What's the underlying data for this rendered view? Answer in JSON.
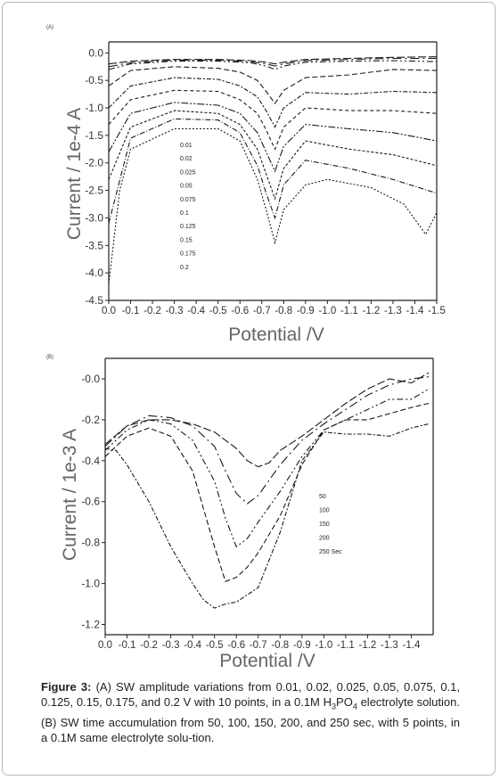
{
  "chart_data": [
    {
      "panel_tag": "(A)",
      "type": "line",
      "xlabel": "Potential /V",
      "ylabel": "Current / 1e-4 A",
      "xlim": [
        0.0,
        1.5
      ],
      "ylim": [
        -4.5,
        0.2
      ],
      "x_ticks": [
        "0.0",
        "-0.1",
        "-0.2",
        "-0.3",
        "-0.4",
        "-0.5",
        "-0.6",
        "-0.7",
        "-0.8",
        "-0.9",
        "-1.0",
        "-1.1",
        "-1.2",
        "-1.3",
        "-1.4",
        "-1.5"
      ],
      "y_ticks": [
        "0.0",
        "-0.5",
        "-1.0",
        "-1.5",
        "-2.0",
        "-2.5",
        "-3.0",
        "-3.5",
        "-4.0",
        "-4.5"
      ],
      "legend": [
        "0.01",
        "0.02",
        "0.025",
        "0.05",
        "0.075",
        "0.1",
        "0.125",
        "0.15",
        "0.175",
        "0.2"
      ],
      "series": [
        {
          "name": "0.01",
          "x": [
            0.0,
            0.1,
            0.3,
            0.5,
            0.65,
            0.72,
            0.76,
            0.8,
            0.9,
            1.1,
            1.3,
            1.5
          ],
          "y": [
            -0.2,
            -0.15,
            -0.12,
            -0.12,
            -0.14,
            -0.17,
            -0.2,
            -0.17,
            -0.12,
            -0.1,
            -0.08,
            -0.07
          ]
        },
        {
          "name": "0.02",
          "x": [
            0.0,
            0.1,
            0.3,
            0.5,
            0.65,
            0.72,
            0.76,
            0.8,
            0.9,
            1.1,
            1.3,
            1.5
          ],
          "y": [
            -0.25,
            -0.18,
            -0.13,
            -0.13,
            -0.16,
            -0.2,
            -0.24,
            -0.2,
            -0.14,
            -0.12,
            -0.1,
            -0.1
          ]
        },
        {
          "name": "0.025",
          "x": [
            0.0,
            0.1,
            0.3,
            0.5,
            0.65,
            0.72,
            0.76,
            0.8,
            0.9,
            1.1,
            1.3,
            1.5
          ],
          "y": [
            -0.3,
            -0.2,
            -0.15,
            -0.15,
            -0.18,
            -0.24,
            -0.3,
            -0.24,
            -0.17,
            -0.15,
            -0.14,
            -0.16
          ]
        },
        {
          "name": "0.05",
          "x": [
            0.0,
            0.1,
            0.3,
            0.5,
            0.6,
            0.68,
            0.72,
            0.76,
            0.8,
            0.9,
            1.1,
            1.3,
            1.5
          ],
          "y": [
            -0.6,
            -0.32,
            -0.25,
            -0.28,
            -0.35,
            -0.5,
            -0.7,
            -0.92,
            -0.68,
            -0.45,
            -0.4,
            -0.3,
            -0.32
          ]
        },
        {
          "name": "0.075",
          "x": [
            0.0,
            0.1,
            0.3,
            0.5,
            0.6,
            0.68,
            0.72,
            0.76,
            0.8,
            0.9,
            1.1,
            1.3,
            1.5
          ],
          "y": [
            -1.0,
            -0.6,
            -0.45,
            -0.48,
            -0.6,
            -0.8,
            -1.05,
            -1.35,
            -1.0,
            -0.72,
            -0.75,
            -0.7,
            -0.72
          ]
        },
        {
          "name": "0.1",
          "x": [
            0.0,
            0.1,
            0.3,
            0.5,
            0.6,
            0.68,
            0.72,
            0.76,
            0.8,
            0.9,
            1.1,
            1.3,
            1.5
          ],
          "y": [
            -1.3,
            -0.85,
            -0.68,
            -0.7,
            -0.85,
            -1.1,
            -1.4,
            -1.75,
            -1.35,
            -1.0,
            -1.05,
            -1.05,
            -1.1
          ]
        },
        {
          "name": "0.125",
          "x": [
            0.0,
            0.1,
            0.3,
            0.5,
            0.6,
            0.68,
            0.72,
            0.76,
            0.8,
            0.9,
            1.1,
            1.3,
            1.5
          ],
          "y": [
            -1.8,
            -1.1,
            -0.9,
            -0.95,
            -1.1,
            -1.45,
            -1.8,
            -2.15,
            -1.7,
            -1.3,
            -1.38,
            -1.45,
            -1.6
          ]
        },
        {
          "name": "0.15",
          "x": [
            0.0,
            0.1,
            0.3,
            0.5,
            0.6,
            0.68,
            0.72,
            0.76,
            0.8,
            0.9,
            1.1,
            1.3,
            1.5
          ],
          "y": [
            -2.3,
            -1.35,
            -1.05,
            -1.1,
            -1.3,
            -1.75,
            -2.2,
            -2.65,
            -2.1,
            -1.6,
            -1.75,
            -1.85,
            -2.05
          ]
        },
        {
          "name": "0.175",
          "x": [
            0.0,
            0.1,
            0.3,
            0.5,
            0.6,
            0.68,
            0.72,
            0.76,
            0.8,
            0.9,
            1.1,
            1.3,
            1.5
          ],
          "y": [
            -3.1,
            -1.55,
            -1.2,
            -1.22,
            -1.45,
            -2.05,
            -2.55,
            -3.0,
            -2.4,
            -1.95,
            -2.1,
            -2.3,
            -2.55
          ]
        },
        {
          "name": "0.2",
          "x": [
            0.0,
            0.05,
            0.1,
            0.3,
            0.5,
            0.6,
            0.68,
            0.72,
            0.76,
            0.8,
            0.9,
            1.0,
            1.2,
            1.35,
            1.45,
            1.5
          ],
          "y": [
            -4.2,
            -2.5,
            -1.75,
            -1.38,
            -1.38,
            -1.6,
            -2.3,
            -2.85,
            -3.45,
            -2.85,
            -2.4,
            -2.3,
            -2.45,
            -2.75,
            -3.3,
            -2.9
          ]
        }
      ]
    },
    {
      "panel_tag": "(B)",
      "type": "line",
      "xlabel": "Potential /V",
      "ylabel": "Current / 1e-3 A",
      "xlim": [
        0.0,
        1.5
      ],
      "ylim": [
        -1.25,
        0.1
      ],
      "x_ticks": [
        "0.0",
        "-0.1",
        "-0.2",
        "-0.3",
        "-0.4",
        "-0.5",
        "-0.6",
        "-0.7",
        "-0.8",
        "-0.9",
        "-1.0",
        "-1.1",
        "-1.2",
        "-1.3",
        "-1.4"
      ],
      "y_ticks": [
        "-0.0",
        "-0.2",
        "-0.4",
        "-0.6",
        "-0.8",
        "-1.0",
        "-1.2"
      ],
      "legend": [
        "50",
        "100",
        "150",
        "200",
        "250 Sec"
      ],
      "series": [
        {
          "name": "50",
          "x": [
            0.0,
            0.1,
            0.2,
            0.3,
            0.4,
            0.5,
            0.6,
            0.65,
            0.7,
            0.75,
            0.8,
            0.9,
            1.0,
            1.1,
            1.2,
            1.3,
            1.4,
            1.48
          ],
          "y": [
            -0.32,
            -0.23,
            -0.2,
            -0.2,
            -0.22,
            -0.26,
            -0.34,
            -0.4,
            -0.43,
            -0.41,
            -0.35,
            -0.28,
            -0.2,
            -0.12,
            -0.05,
            0.0,
            -0.02,
            0.03
          ]
        },
        {
          "name": "100",
          "x": [
            0.0,
            0.1,
            0.2,
            0.3,
            0.4,
            0.5,
            0.55,
            0.6,
            0.65,
            0.7,
            0.8,
            0.9,
            1.0,
            1.1,
            1.2,
            1.3,
            1.4,
            1.48
          ],
          "y": [
            -0.33,
            -0.23,
            -0.18,
            -0.19,
            -0.23,
            -0.33,
            -0.45,
            -0.56,
            -0.61,
            -0.57,
            -0.42,
            -0.3,
            -0.22,
            -0.15,
            -0.08,
            -0.03,
            0.0,
            0.01
          ]
        },
        {
          "name": "150",
          "x": [
            0.0,
            0.1,
            0.2,
            0.3,
            0.4,
            0.5,
            0.55,
            0.6,
            0.65,
            0.7,
            0.8,
            0.9,
            1.0,
            1.1,
            1.2,
            1.3,
            1.4,
            1.48
          ],
          "y": [
            -0.35,
            -0.25,
            -0.2,
            -0.22,
            -0.3,
            -0.5,
            -0.68,
            -0.82,
            -0.78,
            -0.7,
            -0.55,
            -0.38,
            -0.25,
            -0.2,
            -0.15,
            -0.1,
            -0.1,
            -0.05
          ]
        },
        {
          "name": "200",
          "x": [
            0.0,
            0.1,
            0.2,
            0.3,
            0.4,
            0.5,
            0.55,
            0.6,
            0.65,
            0.7,
            0.8,
            0.9,
            1.0,
            1.1,
            1.2,
            1.3,
            1.4,
            1.48
          ],
          "y": [
            -0.38,
            -0.28,
            -0.24,
            -0.28,
            -0.45,
            -0.82,
            -0.99,
            -0.97,
            -0.92,
            -0.85,
            -0.67,
            -0.42,
            -0.25,
            -0.2,
            -0.2,
            -0.17,
            -0.14,
            -0.12
          ]
        },
        {
          "name": "250 Sec",
          "x": [
            0.0,
            0.05,
            0.1,
            0.2,
            0.3,
            0.4,
            0.45,
            0.5,
            0.55,
            0.6,
            0.7,
            0.8,
            0.9,
            1.0,
            1.1,
            1.2,
            1.3,
            1.4,
            1.48
          ],
          "y": [
            -0.34,
            -0.35,
            -0.42,
            -0.6,
            -0.82,
            -1.0,
            -1.08,
            -1.12,
            -1.1,
            -1.09,
            -1.02,
            -0.75,
            -0.4,
            -0.26,
            -0.27,
            -0.27,
            -0.28,
            -0.24,
            -0.22
          ]
        }
      ]
    }
  ],
  "caption": {
    "label": "Figure 3:",
    "part1": " (A) SW amplitude variations from 0.01, 0.02, 0.025, 0.05, 0.075, 0.1, 0.125, 0.15, 0.175, and 0.2 V with 10 points, in a 0.1M H",
    "sub1": "3",
    "part2": "PO",
    "sub2": "4",
    "part3": " electrolyte solution. (B) SW time accumulation from 50, 100, 150, 200, and 250 sec, with 5 points, in a 0.1M same electrolyte solu-tion."
  },
  "colors": {
    "line": "#1a1a1a",
    "axis": "#222222",
    "tick_text": "#333333",
    "title_text": "#666666"
  }
}
